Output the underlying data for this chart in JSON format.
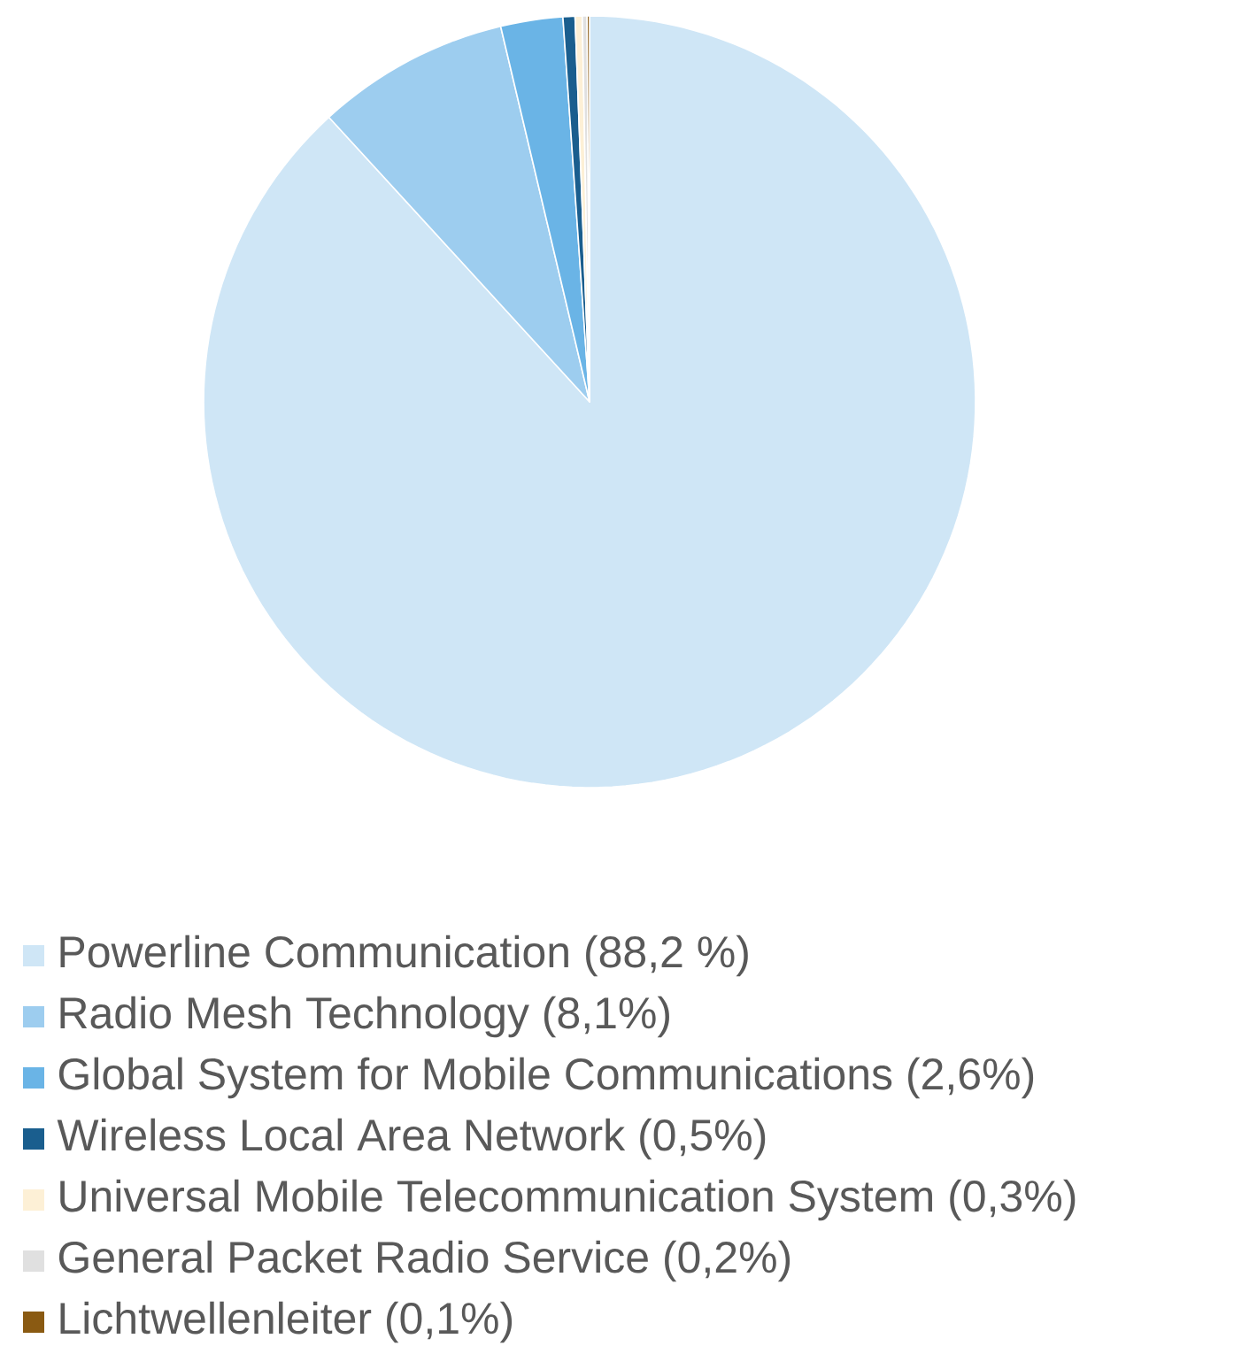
{
  "chart_data": {
    "type": "pie",
    "categories": [
      "Powerline Communication (88,2 %)",
      "Radio Mesh Technology (8,1%)",
      "Global System for Mobile Communications (2,6%)",
      "Wireless Local Area Network (0,5%)",
      "Universal Mobile Telecommunication System (0,3%)",
      "General Packet Radio Service (0,2%)",
      "Lichtwellenleiter (0,1%)"
    ],
    "values": [
      88.2,
      8.1,
      2.6,
      0.5,
      0.3,
      0.2,
      0.1
    ],
    "colors": [
      "#cfe6f6",
      "#9dcdef",
      "#6ab4e6",
      "#1a5e8e",
      "#fdf0d6",
      "#e0e0e0",
      "#8a5a12"
    ],
    "legend": "bottom"
  }
}
